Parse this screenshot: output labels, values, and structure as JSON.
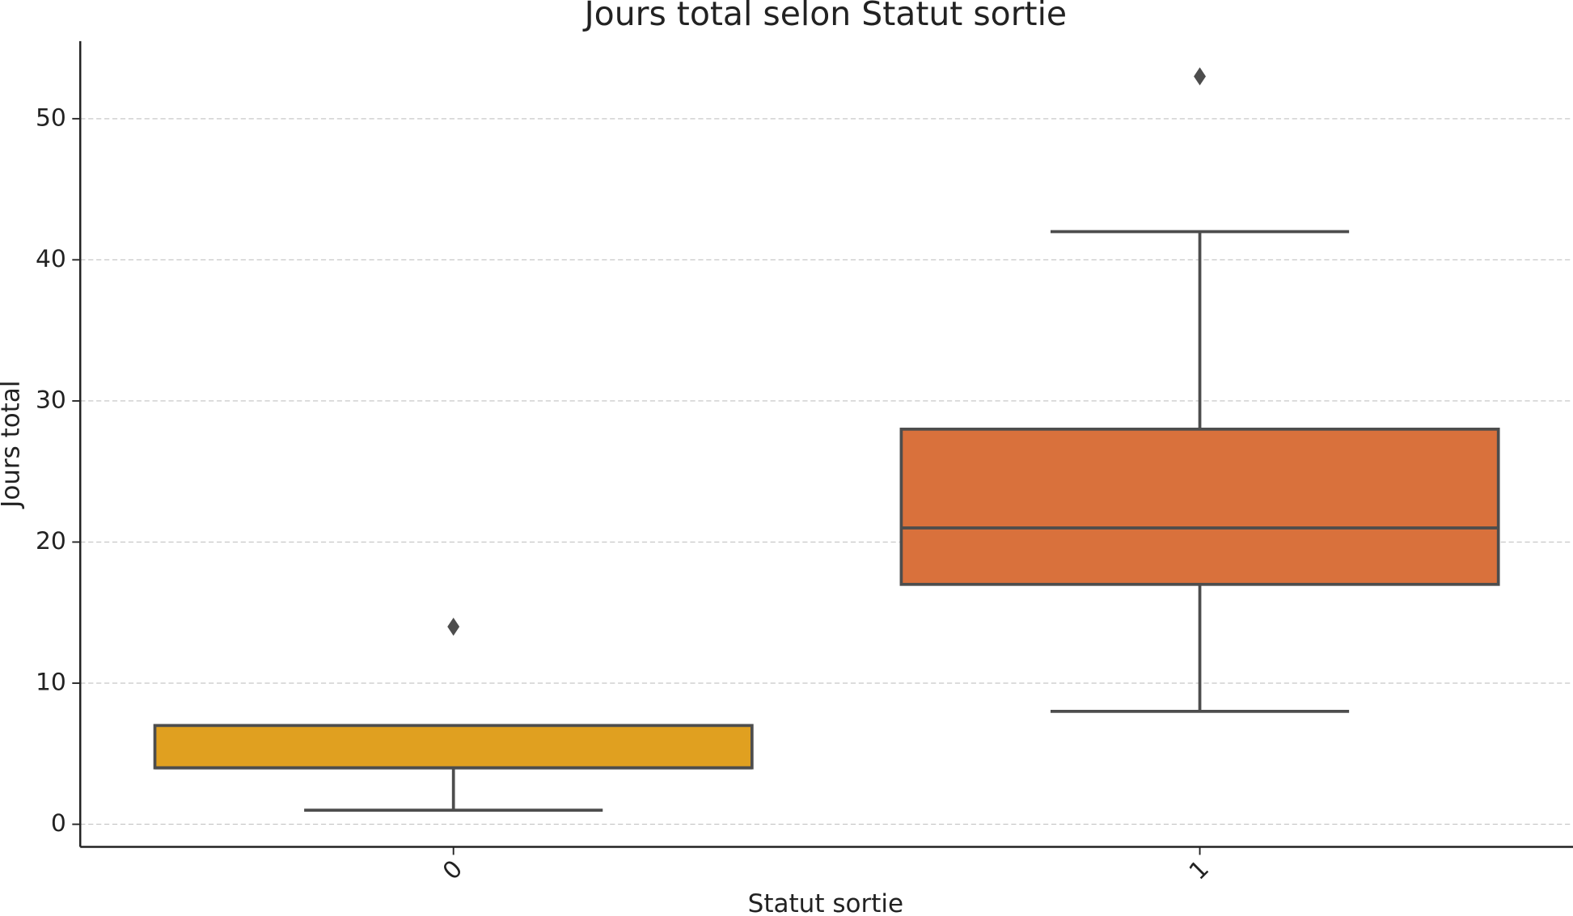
{
  "chart_data": {
    "type": "box",
    "title": "Jours total selon Statut sortie",
    "x_label": "Statut sortie",
    "y_label": "Jours total",
    "categories": [
      "0",
      "1"
    ],
    "colors": [
      "#e0a020",
      "#d9713c"
    ],
    "boxes": [
      {
        "whisker_low": 1,
        "q1": 4,
        "median": 4,
        "q3": 7,
        "whisker_high": 7,
        "outliers": [
          14
        ]
      },
      {
        "whisker_low": 8,
        "q1": 17,
        "median": 21,
        "q3": 28,
        "whisker_high": 42,
        "outliers": [
          53
        ]
      }
    ],
    "ylim": [
      -1.6,
      55.5
    ],
    "yticks": [
      0,
      10,
      20,
      30,
      40,
      50
    ],
    "grid": true
  }
}
